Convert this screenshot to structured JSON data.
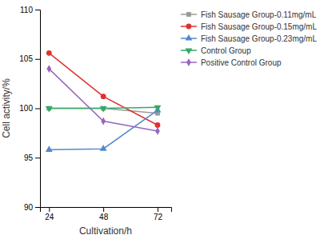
{
  "chart_data": {
    "type": "line",
    "xlabel": "Cultivation/h",
    "ylabel": "Cell activity/%",
    "x": [
      24,
      48,
      72
    ],
    "series": [
      {
        "name": "Fish Sausage Group-0.11mg/mL",
        "color": "#999999",
        "marker": "square",
        "values": [
          100.0,
          100.0,
          99.5
        ]
      },
      {
        "name": "Fish Sausage Group-0.15mg/mL",
        "color": "#e03030",
        "marker": "circle",
        "values": [
          105.6,
          101.2,
          98.3
        ]
      },
      {
        "name": "Fish Sausage Group-0.23mg/mL",
        "color": "#5588cc",
        "marker": "triangle-up",
        "values": [
          95.8,
          95.9,
          99.8
        ]
      },
      {
        "name": "Control Group",
        "color": "#33aa66",
        "marker": "triangle-down",
        "values": [
          100.0,
          100.0,
          100.1
        ]
      },
      {
        "name": "Positive Control Group",
        "color": "#9966bb",
        "marker": "diamond",
        "values": [
          104.0,
          98.7,
          97.7
        ]
      }
    ],
    "xlim": [
      20,
      78
    ],
    "ylim": [
      90,
      110
    ],
    "xticks": [
      24,
      48,
      72
    ],
    "yticks": [
      90,
      95,
      100,
      105,
      110
    ],
    "grid": false,
    "legend": "upper right"
  }
}
